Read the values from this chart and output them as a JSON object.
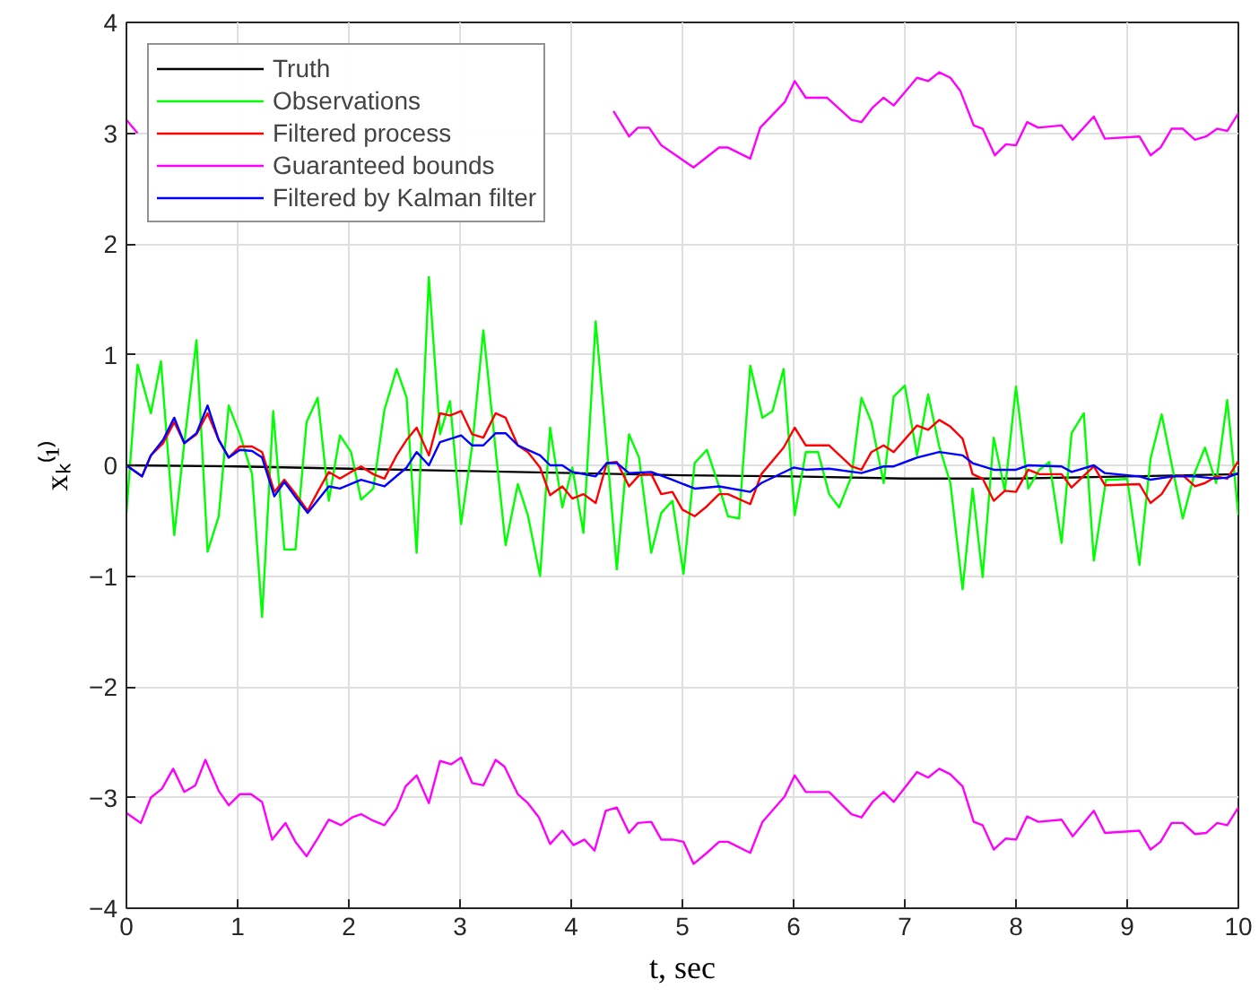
{
  "chart_data": {
    "type": "line",
    "xlabel": "t, sec",
    "ylabel": "xₖ⁽¹⁾",
    "xlim": [
      0,
      10
    ],
    "ylim": [
      -4,
      4
    ],
    "xticks": [
      0,
      1,
      2,
      3,
      4,
      5,
      6,
      7,
      8,
      9,
      10
    ],
    "yticks": [
      -4,
      -3,
      -2,
      -1,
      0,
      1,
      2,
      3,
      4
    ],
    "grid": true,
    "legend": "top left",
    "line_style": "solid",
    "series": [
      {
        "name": "Truth",
        "color": "#000000",
        "x": [
          0,
          1,
          2,
          3,
          4,
          5,
          6,
          7,
          8,
          9,
          10
        ],
        "values": [
          0,
          -0.01,
          -0.03,
          -0.05,
          -0.07,
          -0.09,
          -0.1,
          -0.12,
          -0.12,
          -0.1,
          -0.08
        ]
      },
      {
        "name": "Observations",
        "color": "#00ff00",
        "x": [
          0,
          0.1,
          0.22,
          0.31,
          0.43,
          0.52,
          0.63,
          0.73,
          0.83,
          0.92,
          1.02,
          1.13,
          1.22,
          1.32,
          1.42,
          1.52,
          1.62,
          1.72,
          1.82,
          1.92,
          2.02,
          2.11,
          2.22,
          2.32,
          2.43,
          2.52,
          2.61,
          2.72,
          2.82,
          2.91,
          3.01,
          3.11,
          3.21,
          3.32,
          3.41,
          3.52,
          3.61,
          3.72,
          3.81,
          3.92,
          4.01,
          4.11,
          4.22,
          4.32,
          4.41,
          4.52,
          4.61,
          4.72,
          4.81,
          4.91,
          5.01,
          5.11,
          5.22,
          5.31,
          5.41,
          5.51,
          5.61,
          5.72,
          5.81,
          5.91,
          6.01,
          6.11,
          6.22,
          6.32,
          6.41,
          6.52,
          6.61,
          6.7,
          6.81,
          6.9,
          7.0,
          7.11,
          7.21,
          7.31,
          7.41,
          7.52,
          7.61,
          7.7,
          7.8,
          7.9,
          8.0,
          8.11,
          8.21,
          8.3,
          8.41,
          8.5,
          8.61,
          8.7,
          8.81,
          8.91,
          9.0,
          9.11,
          9.21,
          9.31,
          9.41,
          9.5,
          9.61,
          9.7,
          9.8,
          9.9,
          10
        ],
        "values": [
          -0.43,
          0.91,
          0.47,
          0.94,
          -0.63,
          0.2,
          1.13,
          -0.78,
          -0.46,
          0.54,
          0.28,
          -0.08,
          -1.37,
          0.49,
          -0.76,
          -0.76,
          0.39,
          0.61,
          -0.32,
          0.27,
          0.12,
          -0.31,
          -0.21,
          0.5,
          0.87,
          0.61,
          -0.79,
          1.7,
          0.28,
          0.58,
          -0.53,
          0.18,
          1.22,
          0.14,
          -0.72,
          -0.17,
          -0.45,
          -1.0,
          0.34,
          -0.38,
          -0.02,
          -0.61,
          1.3,
          0.16,
          -0.94,
          0.28,
          0.07,
          -0.79,
          -0.43,
          -0.32,
          -0.98,
          0.02,
          0.14,
          -0.13,
          -0.46,
          -0.48,
          0.9,
          0.43,
          0.49,
          0.87,
          -0.45,
          0.12,
          0.12,
          -0.26,
          -0.38,
          -0.1,
          0.61,
          0.39,
          -0.16,
          0.62,
          0.72,
          0.09,
          0.64,
          0.17,
          -0.16,
          -1.12,
          -0.21,
          -1.01,
          0.25,
          -0.23,
          0.71,
          -0.21,
          -0.04,
          0.03,
          -0.7,
          0.29,
          0.47,
          -0.86,
          -0.13,
          -0.13,
          -0.12,
          -0.9,
          0.06,
          0.46,
          -0.04,
          -0.48,
          -0.06,
          0.16,
          -0.16,
          0.59,
          -0.45
        ]
      },
      {
        "name": "Filtered process",
        "color": "#ff0000",
        "x": [
          0,
          0.14,
          0.22,
          0.33,
          0.43,
          0.52,
          0.63,
          0.73,
          0.83,
          0.92,
          1.02,
          1.13,
          1.22,
          1.33,
          1.42,
          1.53,
          1.63,
          1.72,
          1.82,
          1.92,
          2.02,
          2.11,
          2.22,
          2.32,
          2.43,
          2.52,
          2.61,
          2.72,
          2.82,
          2.91,
          3.01,
          3.11,
          3.21,
          3.32,
          3.41,
          3.52,
          3.61,
          3.72,
          3.81,
          3.92,
          4.01,
          4.11,
          4.22,
          4.32,
          4.41,
          4.52,
          4.61,
          4.72,
          4.81,
          4.91,
          5.0,
          5.11,
          5.22,
          5.33,
          5.41,
          5.61,
          5.71,
          5.91,
          6.01,
          6.11,
          6.32,
          6.52,
          6.61,
          6.7,
          6.81,
          6.9,
          7.11,
          7.21,
          7.31,
          7.41,
          7.52,
          7.61,
          7.7,
          7.8,
          7.9,
          8.0,
          8.11,
          8.21,
          8.41,
          8.5,
          8.7,
          8.8,
          9.11,
          9.21,
          9.31,
          9.41,
          9.5,
          9.61,
          9.7,
          9.8,
          9.9,
          10
        ],
        "values": [
          0,
          -0.1,
          0.09,
          0.2,
          0.39,
          0.2,
          0.28,
          0.47,
          0.23,
          0.07,
          0.17,
          0.17,
          0.12,
          -0.24,
          -0.13,
          -0.27,
          -0.41,
          -0.24,
          -0.06,
          -0.12,
          -0.06,
          -0.01,
          -0.08,
          -0.12,
          0.09,
          0.23,
          0.34,
          0.09,
          0.47,
          0.45,
          0.49,
          0.28,
          0.25,
          0.47,
          0.43,
          0.18,
          0.12,
          -0.02,
          -0.27,
          -0.19,
          -0.3,
          -0.26,
          -0.34,
          0.02,
          0.03,
          -0.19,
          -0.09,
          -0.08,
          -0.26,
          -0.24,
          -0.4,
          -0.46,
          -0.37,
          -0.26,
          -0.26,
          -0.35,
          -0.08,
          0.16,
          0.34,
          0.18,
          0.18,
          -0.01,
          -0.04,
          0.12,
          0.18,
          0.12,
          0.36,
          0.32,
          0.41,
          0.35,
          0.24,
          -0.08,
          -0.12,
          -0.32,
          -0.23,
          -0.24,
          -0.04,
          -0.08,
          -0.08,
          -0.2,
          -0.01,
          -0.18,
          -0.17,
          -0.34,
          -0.26,
          -0.1,
          -0.09,
          -0.19,
          -0.16,
          -0.1,
          -0.12,
          0.04
        ]
      },
      {
        "name": "Guaranteed bounds",
        "color": "#ff00ff",
        "x": [
          0,
          0.1,
          0.24,
          2,
          4.38,
          4.52,
          4.6,
          4.7,
          4.81,
          5.1,
          5.33,
          5.41,
          5.61,
          5.7,
          5.92,
          6.01,
          6.11,
          6.3,
          6.52,
          6.61,
          6.71,
          6.81,
          6.9,
          7.11,
          7.21,
          7.31,
          7.41,
          7.5,
          7.62,
          7.7,
          7.81,
          7.91,
          8.0,
          8.1,
          8.2,
          8.41,
          8.51,
          8.7,
          8.8,
          9.11,
          9.21,
          9.3,
          9.4,
          9.5,
          9.61,
          9.71,
          9.81,
          9.9,
          10
        ],
        "values": [
          3.12,
          3.0,
          null,
          null,
          3.2,
          2.97,
          3.05,
          3.05,
          2.89,
          2.69,
          2.87,
          2.87,
          2.77,
          3.05,
          3.28,
          3.47,
          3.32,
          3.32,
          3.12,
          3.1,
          3.23,
          3.32,
          3.25,
          3.5,
          3.47,
          3.55,
          3.5,
          3.38,
          3.07,
          3.04,
          2.8,
          2.9,
          2.89,
          3.1,
          3.05,
          3.07,
          2.94,
          3.15,
          2.95,
          2.97,
          2.8,
          2.87,
          3.04,
          3.04,
          2.94,
          2.97,
          3.04,
          3.02,
          3.18
        ]
      },
      {
        "name": "Filtered by Kalman filter",
        "color": "#0000ff",
        "x": [
          0,
          0.14,
          0.22,
          0.33,
          0.43,
          0.52,
          0.63,
          0.73,
          0.83,
          0.92,
          1.02,
          1.13,
          1.22,
          1.33,
          1.42,
          1.53,
          1.63,
          1.82,
          1.92,
          2.11,
          2.32,
          2.52,
          2.61,
          2.72,
          2.82,
          3.01,
          3.11,
          3.21,
          3.32,
          3.41,
          3.52,
          3.72,
          3.81,
          3.92,
          4.01,
          4.22,
          4.32,
          4.41,
          4.52,
          4.72,
          4.91,
          5.11,
          5.33,
          5.61,
          5.71,
          6.0,
          6.11,
          6.32,
          6.61,
          6.81,
          6.9,
          7.11,
          7.31,
          7.52,
          7.61,
          7.8,
          8.0,
          8.11,
          8.41,
          8.5,
          8.7,
          8.8,
          9.11,
          9.21,
          9.41,
          9.61,
          9.8,
          9.9,
          10
        ],
        "values": [
          0,
          -0.1,
          0.09,
          0.23,
          0.43,
          0.2,
          0.29,
          0.54,
          0.23,
          0.07,
          0.14,
          0.13,
          0.07,
          -0.28,
          -0.15,
          -0.3,
          -0.43,
          -0.19,
          -0.21,
          -0.13,
          -0.19,
          -0.02,
          0.12,
          0,
          0.21,
          0.27,
          0.18,
          0.18,
          0.29,
          0.29,
          0.18,
          0.09,
          0,
          0,
          -0.06,
          -0.1,
          0.02,
          0.02,
          -0.07,
          -0.06,
          -0.13,
          -0.21,
          -0.19,
          -0.24,
          -0.16,
          -0.02,
          -0.04,
          -0.03,
          -0.07,
          -0.01,
          -0.01,
          0.07,
          0.12,
          0.09,
          0.02,
          -0.04,
          -0.04,
          0,
          -0.01,
          -0.06,
          0,
          -0.07,
          -0.1,
          -0.13,
          -0.1,
          -0.1,
          -0.12,
          -0.11,
          -0.07
        ]
      },
      {
        "color": "#ff00ff",
        "x": [
          0,
          0.13,
          0.22,
          0.32,
          0.42,
          0.52,
          0.62,
          0.71,
          0.83,
          0.92,
          1.02,
          1.12,
          1.22,
          1.31,
          1.43,
          1.52,
          1.62,
          1.72,
          1.82,
          1.93,
          2.03,
          2.11,
          2.22,
          2.32,
          2.43,
          2.51,
          2.61,
          2.72,
          2.82,
          2.92,
          3.01,
          3.11,
          3.21,
          3.32,
          3.4,
          3.52,
          3.61,
          3.71,
          3.81,
          3.92,
          4.02,
          4.12,
          4.21,
          4.31,
          4.41,
          4.52,
          4.6,
          4.72,
          4.81,
          4.91,
          5.01,
          5.1,
          5.22,
          5.33,
          5.41,
          5.61,
          5.72,
          5.92,
          6.01,
          6.11,
          6.32,
          6.52,
          6.61,
          6.71,
          6.81,
          6.9,
          7.11,
          7.21,
          7.31,
          7.41,
          7.52,
          7.62,
          7.7,
          7.8,
          7.91,
          8.0,
          8.1,
          8.2,
          8.41,
          8.51,
          8.7,
          8.8,
          9.11,
          9.21,
          9.3,
          9.4,
          9.5,
          9.61,
          9.71,
          9.81,
          9.9,
          10
        ],
        "values": [
          -3.14,
          -3.23,
          -3.0,
          -2.92,
          -2.74,
          -2.95,
          -2.89,
          -2.66,
          -2.94,
          -3.07,
          -2.97,
          -2.97,
          -3.04,
          -3.38,
          -3.23,
          -3.4,
          -3.53,
          -3.37,
          -3.2,
          -3.25,
          -3.18,
          -3.15,
          -3.21,
          -3.25,
          -3.1,
          -2.9,
          -2.8,
          -3.05,
          -2.67,
          -2.7,
          -2.64,
          -2.87,
          -2.89,
          -2.66,
          -2.72,
          -2.97,
          -3.05,
          -3.18,
          -3.42,
          -3.3,
          -3.43,
          -3.38,
          -3.48,
          -3.12,
          -3.09,
          -3.32,
          -3.23,
          -3.22,
          -3.38,
          -3.38,
          -3.4,
          -3.6,
          -3.5,
          -3.4,
          -3.4,
          -3.5,
          -3.22,
          -2.99,
          -2.8,
          -2.95,
          -2.95,
          -3.15,
          -3.18,
          -3.04,
          -2.95,
          -3.04,
          -2.77,
          -2.82,
          -2.74,
          -2.79,
          -2.9,
          -3.22,
          -3.25,
          -3.47,
          -3.37,
          -3.38,
          -3.17,
          -3.22,
          -3.2,
          -3.35,
          -3.12,
          -3.32,
          -3.3,
          -3.47,
          -3.4,
          -3.23,
          -3.23,
          -3.33,
          -3.32,
          -3.23,
          -3.25,
          -3.09
        ]
      }
    ]
  }
}
